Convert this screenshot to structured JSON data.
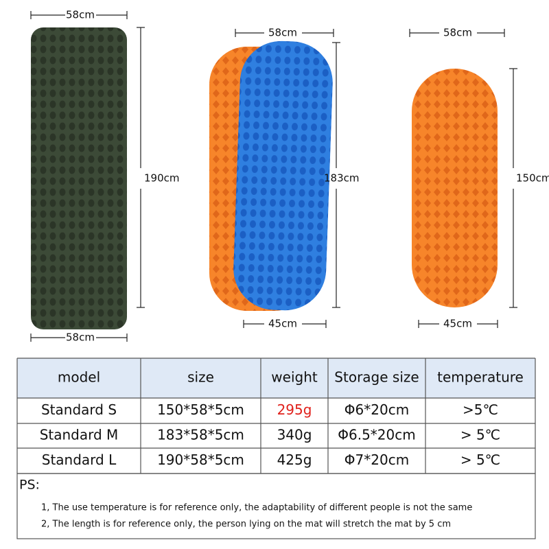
{
  "dimensions": {
    "large": {
      "width_top": "58cm",
      "length": "190cm",
      "width_bottom": "58cm"
    },
    "medium": {
      "width_top": "58cm",
      "length": "183cm",
      "width_bottom": "45cm"
    },
    "small": {
      "width_top": "58cm",
      "length": "150cm",
      "width_bottom": "45cm"
    }
  },
  "table": {
    "header": [
      "model",
      "size",
      "weight",
      "Storage size",
      "temperature"
    ],
    "rows": [
      [
        "Standard S",
        "150*58*5cm",
        "295g",
        "Φ6*20cm",
        ">5℃"
      ],
      [
        "Standard M",
        "183*58*5cm",
        "340g",
        "Φ6.5*20cm",
        "> 5℃"
      ],
      [
        "Standard L",
        "190*58*5cm",
        "425g",
        "Φ7*20cm",
        "> 5℃"
      ]
    ],
    "highlight": {
      "row": 0,
      "col": 2,
      "color": "#e0201b"
    }
  },
  "notes": {
    "title": "PS:",
    "items": [
      "1, The use temperature is for reference only, the adaptability of different people is not the same",
      "2, The length is for reference only, the person lying on the mat will stretch the mat by 5 cm"
    ]
  }
}
